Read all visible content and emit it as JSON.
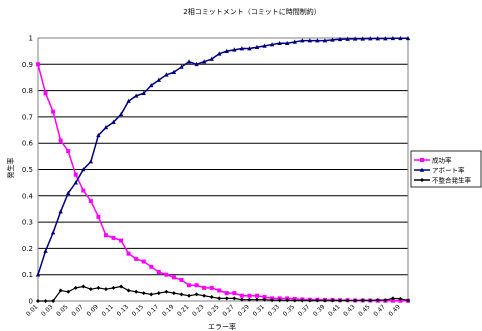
{
  "chart_data": {
    "type": "line",
    "title": "2相コミットメント（コミットに時間制約）",
    "xlabel": "エラー率",
    "ylabel": "発生率",
    "ylim": [
      0,
      1
    ],
    "yticks": [
      "0",
      "0.1",
      "0.2",
      "0.3",
      "0.4",
      "0.5",
      "0.6",
      "0.7",
      "0.8",
      "0.9",
      "1"
    ],
    "categories": [
      "0.01",
      "0.02",
      "0.03",
      "0.04",
      "0.05",
      "0.06",
      "0.07",
      "0.08",
      "0.09",
      "0.1",
      "0.11",
      "0.12",
      "0.13",
      "0.14",
      "0.15",
      "0.16",
      "0.17",
      "0.18",
      "0.19",
      "0.2",
      "0.21",
      "0.22",
      "0.23",
      "0.24",
      "0.25",
      "0.26",
      "0.27",
      "0.28",
      "0.29",
      "0.3",
      "0.31",
      "0.32",
      "0.33",
      "0.34",
      "0.35",
      "0.36",
      "0.37",
      "0.38",
      "0.39",
      "0.4",
      "0.41",
      "0.42",
      "0.43",
      "0.44",
      "0.45",
      "0.46",
      "0.47",
      "0.48",
      "0.49",
      "0.5"
    ],
    "tick_labels": [
      "0.01",
      "0.03",
      "0.05",
      "0.07",
      "0.09",
      "0.11",
      "0.13",
      "0.15",
      "0.17",
      "0.19",
      "0.21",
      "0.23",
      "0.25",
      "0.27",
      "0.29",
      "0.31",
      "0.33",
      "0.35",
      "0.37",
      "0.39",
      "0.41",
      "0.43",
      "0.45",
      "0.47",
      "0.49"
    ],
    "grid": true,
    "legend_position": "right",
    "series": [
      {
        "name": "成功率",
        "color": "#ff00ff",
        "marker": "square",
        "values": [
          0.9,
          0.79,
          0.72,
          0.61,
          0.57,
          0.48,
          0.42,
          0.38,
          0.32,
          0.25,
          0.24,
          0.23,
          0.18,
          0.16,
          0.15,
          0.13,
          0.11,
          0.1,
          0.09,
          0.08,
          0.06,
          0.06,
          0.05,
          0.05,
          0.04,
          0.03,
          0.03,
          0.02,
          0.02,
          0.02,
          0.015,
          0.01,
          0.01,
          0.01,
          0.008,
          0.006,
          0.005,
          0.005,
          0.004,
          0.004,
          0.003,
          0.003,
          0.002,
          0.002,
          0.002,
          0.001,
          0.001,
          0.001,
          0.001,
          0.001
        ]
      },
      {
        "name": "アボート率",
        "color": "#000080",
        "marker": "triangle",
        "values": [
          0.1,
          0.19,
          0.26,
          0.34,
          0.41,
          0.45,
          0.5,
          0.53,
          0.63,
          0.66,
          0.68,
          0.71,
          0.76,
          0.78,
          0.79,
          0.82,
          0.84,
          0.86,
          0.87,
          0.89,
          0.91,
          0.9,
          0.91,
          0.92,
          0.94,
          0.95,
          0.955,
          0.96,
          0.96,
          0.965,
          0.97,
          0.975,
          0.98,
          0.98,
          0.985,
          0.99,
          0.99,
          0.99,
          0.99,
          0.993,
          0.995,
          0.996,
          0.997,
          0.997,
          0.998,
          0.998,
          0.998,
          0.999,
          0.999,
          0.999
        ]
      },
      {
        "name": "不整合発生率",
        "color": "#000000",
        "marker": "diamond",
        "values": [
          0.0,
          0.0,
          0.0,
          0.04,
          0.035,
          0.05,
          0.055,
          0.045,
          0.05,
          0.045,
          0.05,
          0.055,
          0.04,
          0.035,
          0.03,
          0.025,
          0.03,
          0.035,
          0.03,
          0.025,
          0.02,
          0.025,
          0.02,
          0.015,
          0.01,
          0.01,
          0.01,
          0.005,
          0.005,
          0.005,
          0.005,
          0.003,
          0.003,
          0.003,
          0.002,
          0.002,
          0.002,
          0.002,
          0.002,
          0.002,
          0.002,
          0.002,
          0.002,
          0.003,
          0.002,
          0.004,
          0.003,
          0.01,
          0.008,
          0.002
        ]
      }
    ]
  }
}
